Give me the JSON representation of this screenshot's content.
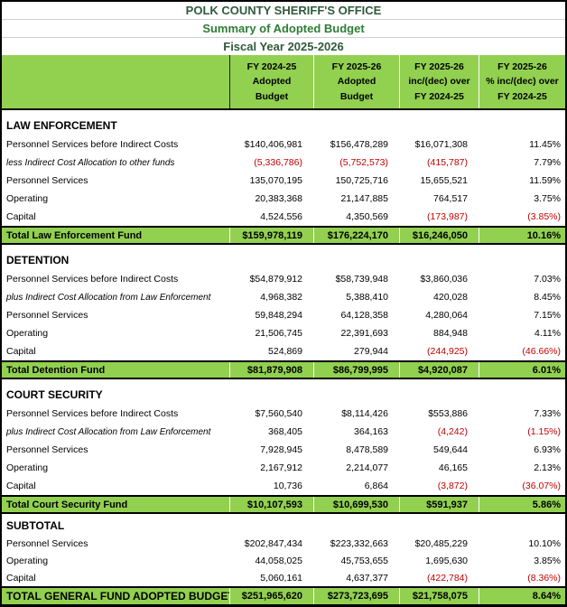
{
  "colors": {
    "accent_green_fill": "#92D050",
    "title_dark_green": "#2F5A3A",
    "subtitle_green": "#2E7D35",
    "negative_red": "#C00000"
  },
  "header": {
    "title": "POLK COUNTY SHERIFF'S OFFICE",
    "subtitle": "Summary of  Adopted Budget",
    "fiscal_year": "Fiscal Year 2025-2026"
  },
  "columns": {
    "fy24_25": "FY 2024-25\nAdopted\nBudget",
    "fy25_26": "FY 2025-26\nAdopted\nBudget",
    "inc_dec": "FY 2025-26\ninc/(dec) over\nFY 2024-25",
    "pct": "FY 2025-26\n% inc/(dec) over\nFY 2024-25"
  },
  "sections": [
    {
      "name": "LAW ENFORCEMENT",
      "rows": [
        {
          "label": "Personnel Services before Indirect Costs",
          "fy24_25": "$140,406,981",
          "fy25_26": "$156,478,289",
          "inc_dec": "$16,071,308",
          "pct": "11.45%"
        },
        {
          "label": "less Indirect Cost Allocation to other funds",
          "fy24_25": "(5,336,786)",
          "fy25_26": "(5,752,573)",
          "inc_dec": "(415,787)",
          "pct": "7.79%"
        },
        {
          "label": "Personnel Services",
          "fy24_25": "135,070,195",
          "fy25_26": "150,725,716",
          "inc_dec": "15,655,521",
          "pct": "11.59%"
        },
        {
          "label": "Operating",
          "fy24_25": "20,383,368",
          "fy25_26": "21,147,885",
          "inc_dec": "764,517",
          "pct": "3.75%"
        },
        {
          "label": "Capital",
          "fy24_25": "4,524,556",
          "fy25_26": "4,350,569",
          "inc_dec": "(173,987)",
          "pct": "(3.85%)"
        }
      ],
      "total": {
        "label": "Total Law Enforcement Fund",
        "fy24_25": "$159,978,119",
        "fy25_26": "$176,224,170",
        "inc_dec": "$16,246,050",
        "pct": "10.16%"
      }
    },
    {
      "name": "DETENTION",
      "rows": [
        {
          "label": "Personnel Services before Indirect Costs",
          "fy24_25": "$54,879,912",
          "fy25_26": "$58,739,948",
          "inc_dec": "$3,860,036",
          "pct": "7.03%"
        },
        {
          "label": "plus Indirect Cost Allocation from Law Enforcement",
          "fy24_25": "4,968,382",
          "fy25_26": "5,388,410",
          "inc_dec": "420,028",
          "pct": "8.45%"
        },
        {
          "label": "Personnel Services",
          "fy24_25": "59,848,294",
          "fy25_26": "64,128,358",
          "inc_dec": "4,280,064",
          "pct": "7.15%"
        },
        {
          "label": "Operating",
          "fy24_25": "21,506,745",
          "fy25_26": "22,391,693",
          "inc_dec": "884,948",
          "pct": "4.11%"
        },
        {
          "label": "Capital",
          "fy24_25": "524,869",
          "fy25_26": "279,944",
          "inc_dec": "(244,925)",
          "pct": "(46.66%)"
        }
      ],
      "total": {
        "label": "Total Detention Fund",
        "fy24_25": "$81,879,908",
        "fy25_26": "$86,799,995",
        "inc_dec": "$4,920,087",
        "pct": "6.01%"
      }
    },
    {
      "name": "COURT SECURITY",
      "rows": [
        {
          "label": "Personnel Services before Indirect Costs",
          "fy24_25": "$7,560,540",
          "fy25_26": "$8,114,426",
          "inc_dec": "$553,886",
          "pct": "7.33%"
        },
        {
          "label": "plus Indirect Cost Allocation from Law Enforcement",
          "fy24_25": "368,405",
          "fy25_26": "364,163",
          "inc_dec": "(4,242)",
          "pct": "(1.15%)"
        },
        {
          "label": "Personnel Services",
          "fy24_25": "7,928,945",
          "fy25_26": "8,478,589",
          "inc_dec": "549,644",
          "pct": "6.93%"
        },
        {
          "label": "Operating",
          "fy24_25": "2,167,912",
          "fy25_26": "2,214,077",
          "inc_dec": "46,165",
          "pct": "2.13%"
        },
        {
          "label": "Capital",
          "fy24_25": "10,736",
          "fy25_26": "6,864",
          "inc_dec": "(3,872)",
          "pct": "(36.07%)"
        }
      ],
      "total": {
        "label": "Total Court Security Fund",
        "fy24_25": "$10,107,593",
        "fy25_26": "$10,699,530",
        "inc_dec": "$591,937",
        "pct": "5.86%"
      }
    },
    {
      "name": "SUBTOTAL",
      "rows": [
        {
          "label": "Personnel Services",
          "fy24_25": "$202,847,434",
          "fy25_26": "$223,332,663",
          "inc_dec": "$20,485,229",
          "pct": "10.10%"
        },
        {
          "label": "Operating",
          "fy24_25": "44,058,025",
          "fy25_26": "45,753,655",
          "inc_dec": "1,695,630",
          "pct": "3.85%"
        },
        {
          "label": "Capital",
          "fy24_25": "5,060,161",
          "fy25_26": "4,637,377",
          "inc_dec": "(422,784)",
          "pct": "(8.36%)"
        }
      ],
      "total": {
        "label": "TOTAL GENERAL FUND ADOPTED BUDGET",
        "fy24_25": "$251,965,620",
        "fy25_26": "$273,723,695",
        "inc_dec": "$21,758,075",
        "pct": "8.64%"
      }
    }
  ]
}
